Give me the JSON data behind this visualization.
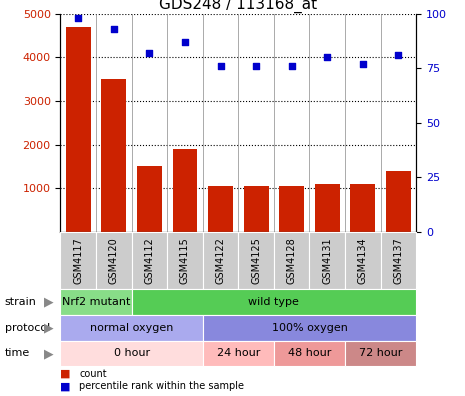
{
  "title": "GDS248 / 113168_at",
  "samples": [
    "GSM4117",
    "GSM4120",
    "GSM4112",
    "GSM4115",
    "GSM4122",
    "GSM4125",
    "GSM4128",
    "GSM4131",
    "GSM4134",
    "GSM4137"
  ],
  "counts": [
    4700,
    3500,
    1500,
    1900,
    1050,
    1050,
    1050,
    1100,
    1100,
    1400
  ],
  "percentiles": [
    98,
    93,
    82,
    87,
    76,
    76,
    76,
    80,
    77,
    81
  ],
  "bar_color": "#cc2200",
  "scatter_color": "#0000cc",
  "ylim_left": [
    0,
    5000
  ],
  "ylim_right": [
    0,
    100
  ],
  "yticks_left": [
    1000,
    2000,
    3000,
    4000,
    5000
  ],
  "yticks_right": [
    0,
    25,
    50,
    75,
    100
  ],
  "strain_labels": [
    {
      "text": "Nrf2 mutant",
      "start": 0,
      "end": 2,
      "color": "#88dd88"
    },
    {
      "text": "wild type",
      "start": 2,
      "end": 10,
      "color": "#55cc55"
    }
  ],
  "protocol_labels": [
    {
      "text": "normal oxygen",
      "start": 0,
      "end": 4,
      "color": "#aaaaee"
    },
    {
      "text": "100% oxygen",
      "start": 4,
      "end": 10,
      "color": "#8888dd"
    }
  ],
  "time_labels": [
    {
      "text": "0 hour",
      "start": 0,
      "end": 4,
      "color": "#ffdddd"
    },
    {
      "text": "24 hour",
      "start": 4,
      "end": 6,
      "color": "#ffbbbb"
    },
    {
      "text": "48 hour",
      "start": 6,
      "end": 8,
      "color": "#ee9999"
    },
    {
      "text": "72 hour",
      "start": 8,
      "end": 10,
      "color": "#cc8888"
    }
  ],
  "legend_count_color": "#cc2200",
  "legend_scatter_color": "#0000cc",
  "background_color": "#ffffff",
  "title_fontsize": 11,
  "tick_bg_color": "#cccccc",
  "xtick_fontsize": 7,
  "row_fontsize": 8,
  "label_fontsize": 8
}
